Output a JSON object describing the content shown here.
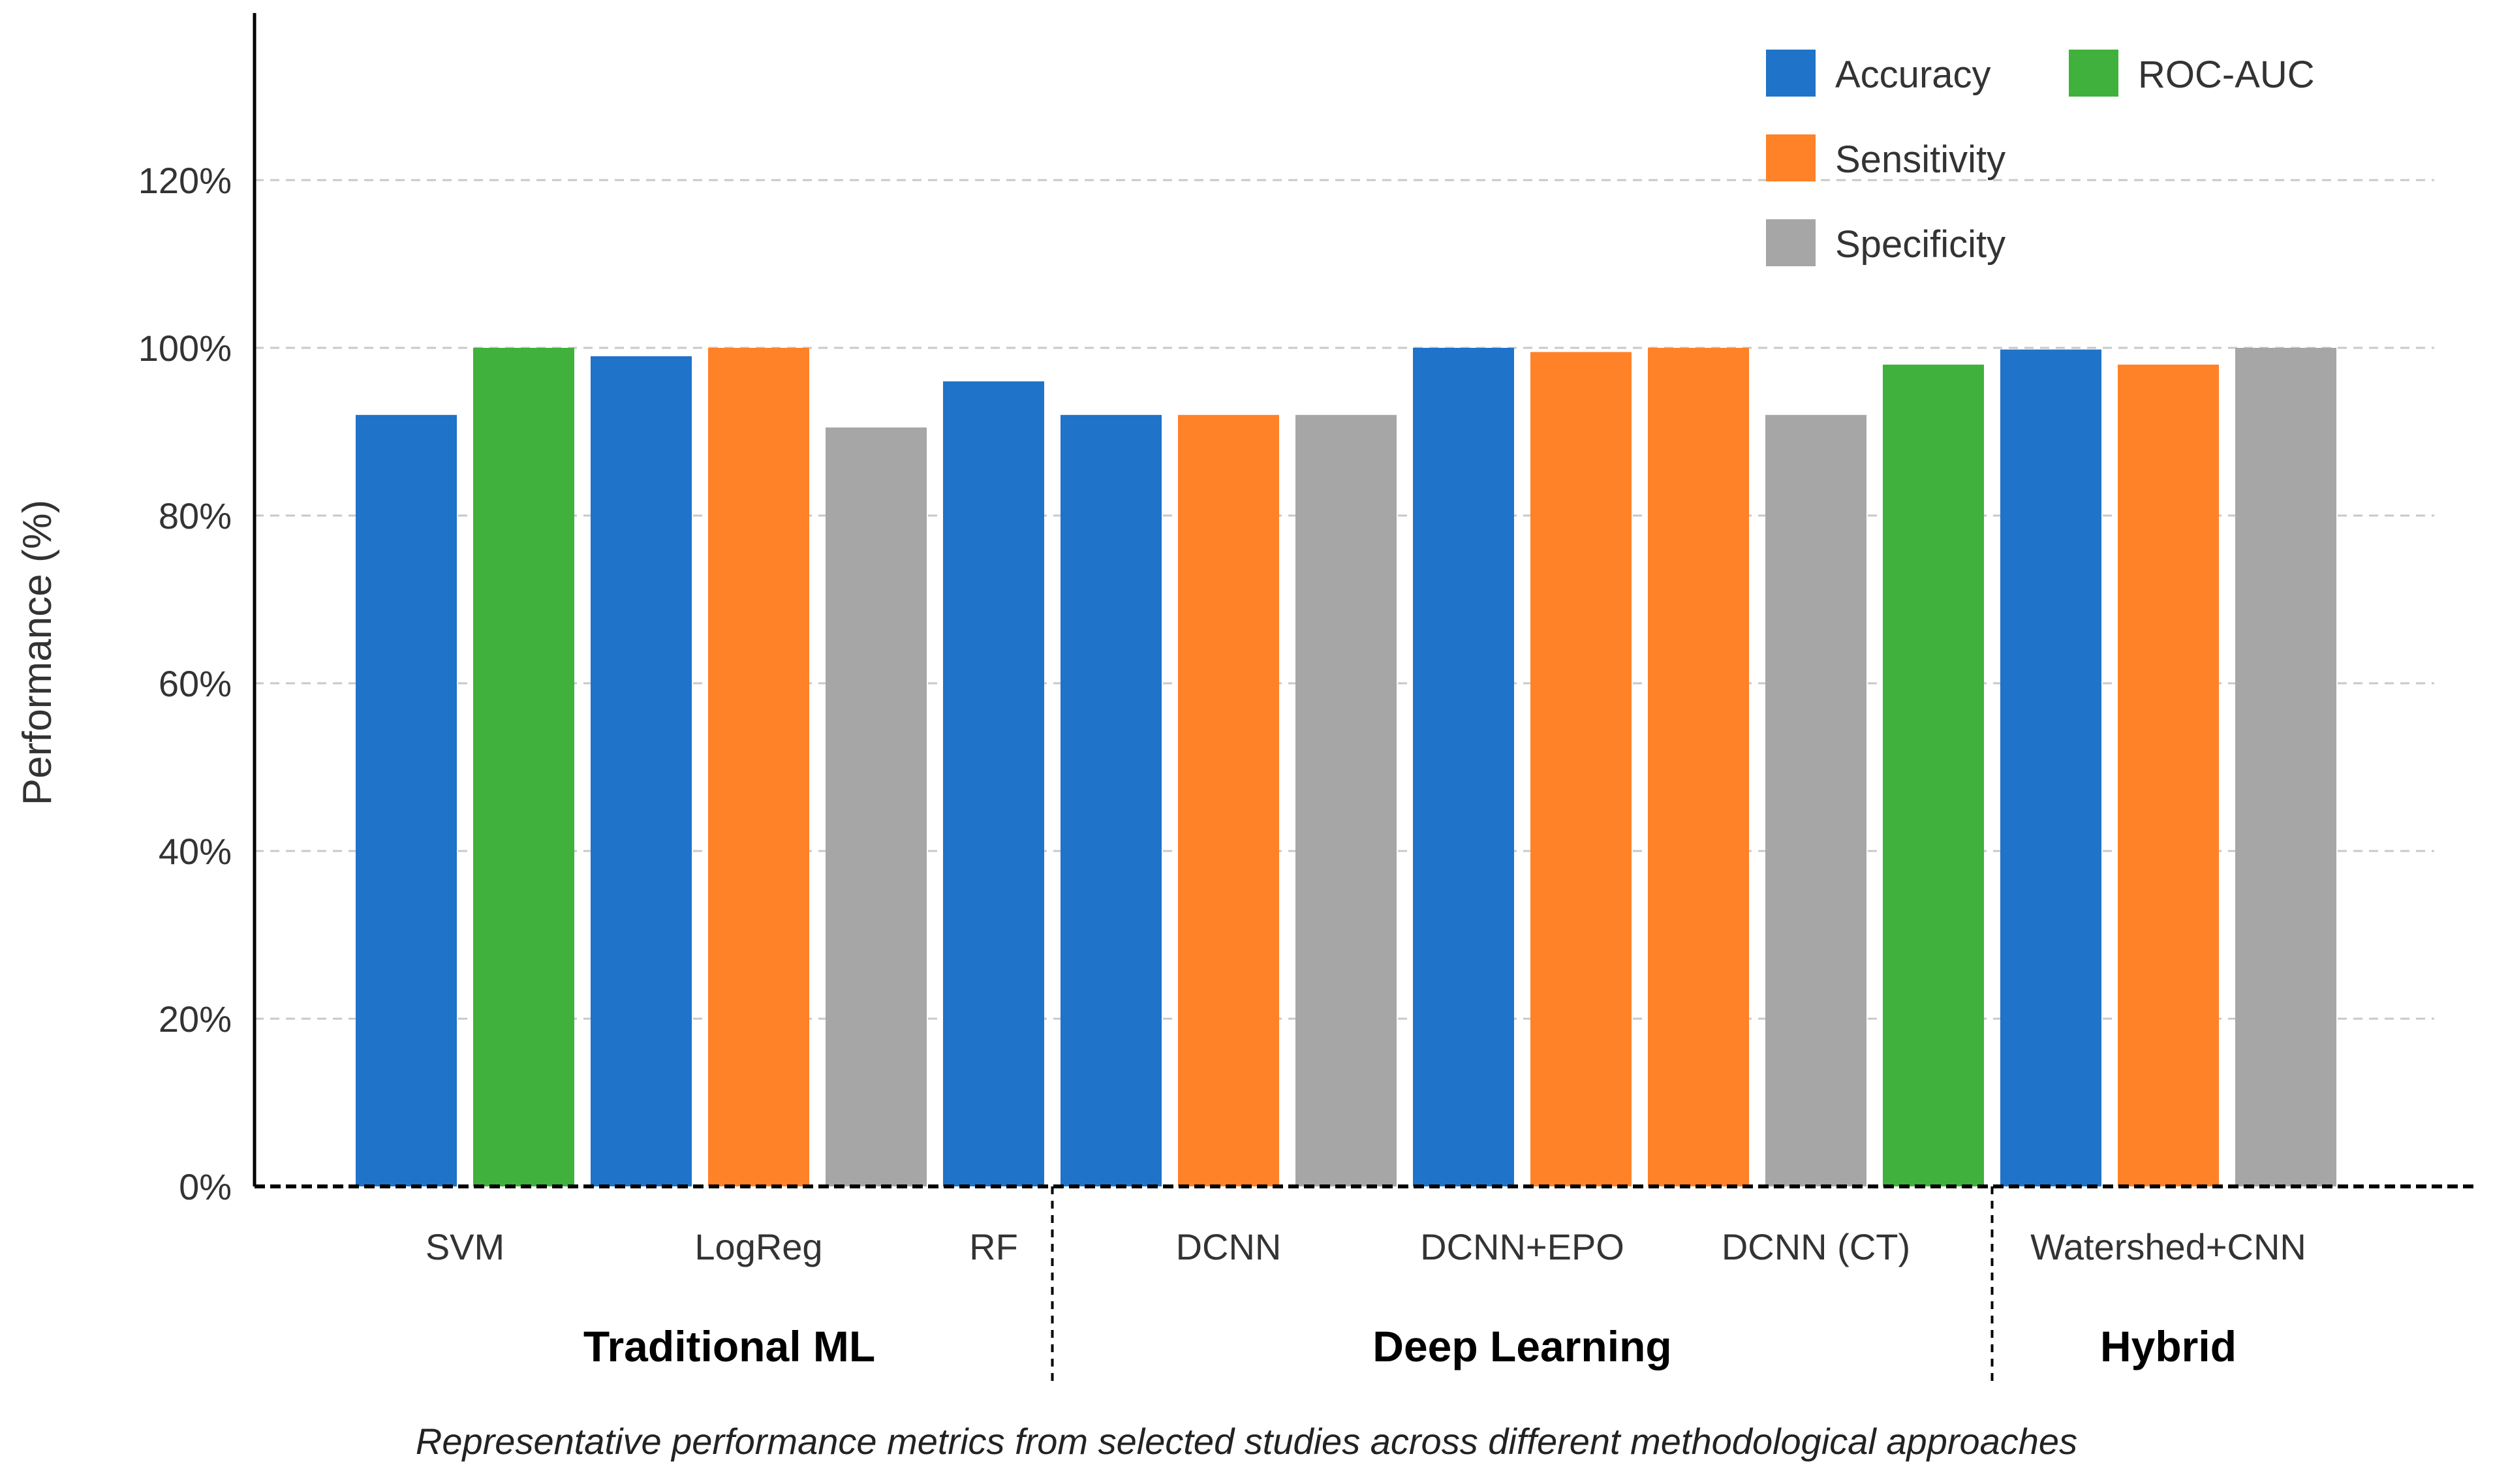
{
  "chart_data": {
    "type": "bar",
    "ylabel": "Performance (%)",
    "xlabel": "",
    "ylim": [
      0,
      140
    ],
    "yticks": [
      0,
      20,
      40,
      60,
      80,
      100,
      120
    ],
    "ytick_labels": [
      "0%",
      "20%",
      "40%",
      "60%",
      "80%",
      "100%",
      "120%"
    ],
    "grid": true,
    "legend_position": "top-right",
    "series": [
      {
        "name": "Accuracy",
        "color": "#1f73c9"
      },
      {
        "name": "Sensitivity",
        "color": "#ff8228"
      },
      {
        "name": "Specificity",
        "color": "#a6a6a6"
      },
      {
        "name": "ROC-AUC",
        "color": "#40b13c"
      }
    ],
    "legend": [
      {
        "label": "Accuracy",
        "series": "Accuracy"
      },
      {
        "label": "ROC-AUC",
        "series": "ROC-AUC"
      },
      {
        "label": "Sensitivity",
        "series": "Sensitivity"
      },
      {
        "label": "Specificity",
        "series": "Specificity"
      }
    ],
    "categories": [
      "SVM",
      "LogReg",
      "RF",
      "DCNN",
      "DCNN+EPO",
      "DCNN (CT)",
      "Watershed+CNN"
    ],
    "groups": [
      {
        "label": "Traditional ML",
        "categories": [
          "SVM",
          "LogReg",
          "RF"
        ]
      },
      {
        "label": "Deep Learning",
        "categories": [
          "DCNN",
          "DCNN+EPO",
          "DCNN (CT)"
        ]
      },
      {
        "label": "Hybrid",
        "categories": [
          "Watershed+CNN"
        ]
      }
    ],
    "bars": [
      {
        "category": "SVM",
        "series": "Accuracy",
        "value": 92
      },
      {
        "category": "SVM",
        "series": "ROC-AUC",
        "value": 100
      },
      {
        "category": "LogReg",
        "series": "Accuracy",
        "value": 99
      },
      {
        "category": "LogReg",
        "series": "Sensitivity",
        "value": 100
      },
      {
        "category": "LogReg",
        "series": "Specificity",
        "value": 90.5
      },
      {
        "category": "RF",
        "series": "Accuracy",
        "value": 96
      },
      {
        "category": "DCNN",
        "series": "Accuracy",
        "value": 92
      },
      {
        "category": "DCNN",
        "series": "Sensitivity",
        "value": 92
      },
      {
        "category": "DCNN",
        "series": "Specificity",
        "value": 92
      },
      {
        "category": "DCNN+EPO",
        "series": "Accuracy",
        "value": 100
      },
      {
        "category": "DCNN+EPO",
        "series": "Sensitivity",
        "value": 99.5
      },
      {
        "category": "DCNN (CT)",
        "series": "Sensitivity",
        "value": 100
      },
      {
        "category": "DCNN (CT)",
        "series": "Specificity",
        "value": 92
      },
      {
        "category": "DCNN (CT)",
        "series": "ROC-AUC",
        "value": 98
      },
      {
        "category": "Watershed+CNN",
        "series": "Accuracy",
        "value": 99.8
      },
      {
        "category": "Watershed+CNN",
        "series": "Sensitivity",
        "value": 98
      },
      {
        "category": "Watershed+CNN",
        "series": "Specificity",
        "value": 100
      }
    ],
    "caption": "Representative performance metrics from selected studies across different methodological approaches"
  }
}
